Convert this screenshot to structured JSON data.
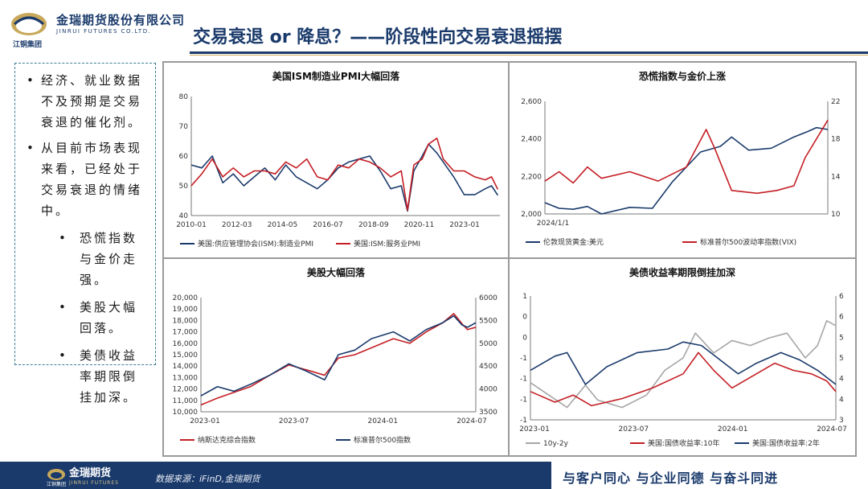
{
  "logo": {
    "name_cn": "金瑞期货股份有限公司",
    "name_en": "JINRUI FUTURES CO.LTD.",
    "group": "江铜集团"
  },
  "title": "交易衰退 or 降息？——阶段性向交易衰退摇摆",
  "bullets": [
    {
      "level": 1,
      "text": "经济、就业数据不及预期是交易衰退的催化剂。"
    },
    {
      "level": 1,
      "text": "从目前市场表现来看，已经处于交易衰退的情绪中。"
    },
    {
      "level": 2,
      "text": "恐慌指数与金价走强。"
    },
    {
      "level": 2,
      "text": "美股大幅回落。"
    },
    {
      "level": 2,
      "text": "美债收益率期限倒挂加深。"
    }
  ],
  "colors": {
    "navy": "#1a3a6b",
    "red": "#c41e24",
    "gray": "#a6a6a6"
  },
  "chart_data": [
    {
      "id": "pmi",
      "type": "line",
      "title": "美国ISM制造业PMI大幅回落",
      "x_ticks": [
        "2010-01",
        "2012-03",
        "2014-05",
        "2016-07",
        "2018-09",
        "2020-11",
        "2023-01"
      ],
      "ylim": [
        40,
        80
      ],
      "y_ticks": [
        "40",
        "50",
        "60",
        "70",
        "80"
      ],
      "series": [
        {
          "name": "美国:供应管理协会(ISM):制造业PMI",
          "color": "#1a3a6b",
          "values": [
            [
              2010.0,
              57
            ],
            [
              2010.5,
              56
            ],
            [
              2011.0,
              60
            ],
            [
              2011.5,
              51
            ],
            [
              2012.0,
              54
            ],
            [
              2012.5,
              50
            ],
            [
              2013.0,
              53
            ],
            [
              2013.5,
              56
            ],
            [
              2014.0,
              52
            ],
            [
              2014.5,
              57
            ],
            [
              2015.0,
              53
            ],
            [
              2015.5,
              51
            ],
            [
              2016.0,
              49
            ],
            [
              2016.5,
              52
            ],
            [
              2017.0,
              56
            ],
            [
              2017.5,
              58
            ],
            [
              2018.0,
              59
            ],
            [
              2018.5,
              60
            ],
            [
              2019.0,
              55
            ],
            [
              2019.5,
              49
            ],
            [
              2020.0,
              50
            ],
            [
              2020.3,
              41.5
            ],
            [
              2020.6,
              55
            ],
            [
              2021.0,
              60
            ],
            [
              2021.3,
              64
            ],
            [
              2021.7,
              61
            ],
            [
              2022.0,
              58
            ],
            [
              2022.5,
              53
            ],
            [
              2023.0,
              47
            ],
            [
              2023.5,
              47
            ],
            [
              2024.0,
              49
            ],
            [
              2024.3,
              50
            ],
            [
              2024.6,
              46.8
            ]
          ]
        },
        {
          "name": "美国:ISM:服务业PMI",
          "color": "#c41e24",
          "values": [
            [
              2010.0,
              50
            ],
            [
              2010.5,
              54
            ],
            [
              2011.0,
              59
            ],
            [
              2011.5,
              53
            ],
            [
              2012.0,
              56
            ],
            [
              2012.5,
              53
            ],
            [
              2013.0,
              55
            ],
            [
              2013.5,
              55
            ],
            [
              2014.0,
              54
            ],
            [
              2014.5,
              58
            ],
            [
              2015.0,
              56
            ],
            [
              2015.5,
              59
            ],
            [
              2016.0,
              53
            ],
            [
              2016.5,
              52
            ],
            [
              2017.0,
              57
            ],
            [
              2017.5,
              56
            ],
            [
              2018.0,
              59
            ],
            [
              2018.5,
              58
            ],
            [
              2019.0,
              56
            ],
            [
              2019.5,
              53
            ],
            [
              2020.0,
              55
            ],
            [
              2020.3,
              41.8
            ],
            [
              2020.6,
              57
            ],
            [
              2021.0,
              59
            ],
            [
              2021.3,
              64
            ],
            [
              2021.7,
              66
            ],
            [
              2022.0,
              59
            ],
            [
              2022.5,
              55
            ],
            [
              2023.0,
              55
            ],
            [
              2023.5,
              53
            ],
            [
              2024.0,
              52
            ],
            [
              2024.3,
              53
            ],
            [
              2024.6,
              48.8
            ]
          ]
        }
      ]
    },
    {
      "id": "vix",
      "type": "line",
      "title": "恐慌指数与金价上涨",
      "x_ticks": [
        "2024/1/1"
      ],
      "ylim_left": [
        2000,
        2600
      ],
      "y_ticks_left": [
        "2,000",
        "2,200",
        "2,400",
        "2,600"
      ],
      "ylim_right": [
        10,
        22
      ],
      "y_ticks_right": [
        "10",
        "14",
        "18",
        "22"
      ],
      "series": [
        {
          "name": "伦敦现货黄金:美元",
          "axis": "left",
          "color": "#1a3a6b",
          "values": [
            [
              0,
              2060
            ],
            [
              0.05,
              2030
            ],
            [
              0.1,
              2025
            ],
            [
              0.15,
              2040
            ],
            [
              0.2,
              2000
            ],
            [
              0.3,
              2035
            ],
            [
              0.38,
              2030
            ],
            [
              0.45,
              2170
            ],
            [
              0.55,
              2330
            ],
            [
              0.62,
              2360
            ],
            [
              0.66,
              2410
            ],
            [
              0.72,
              2340
            ],
            [
              0.8,
              2350
            ],
            [
              0.88,
              2410
            ],
            [
              0.93,
              2440
            ],
            [
              0.96,
              2460
            ],
            [
              1.0,
              2450
            ]
          ]
        },
        {
          "name": "标准普尔500波动率指数(VIX)",
          "axis": "right",
          "color": "#c41e24",
          "values": [
            [
              0,
              13.5
            ],
            [
              0.05,
              14.5
            ],
            [
              0.1,
              13.3
            ],
            [
              0.15,
              15
            ],
            [
              0.2,
              13.8
            ],
            [
              0.3,
              14.5
            ],
            [
              0.4,
              13.5
            ],
            [
              0.5,
              15
            ],
            [
              0.57,
              19
            ],
            [
              0.6,
              17
            ],
            [
              0.66,
              12.5
            ],
            [
              0.75,
              12.2
            ],
            [
              0.82,
              12.5
            ],
            [
              0.88,
              13.0
            ],
            [
              0.92,
              16
            ],
            [
              0.96,
              18
            ],
            [
              1.0,
              20
            ]
          ]
        }
      ]
    },
    {
      "id": "equity",
      "type": "line",
      "title": "美股大幅回落",
      "x_ticks": [
        "2023-01",
        "2023-07",
        "2024-01",
        "2024-07"
      ],
      "ylim_left": [
        10000,
        20000
      ],
      "y_ticks_left": [
        "10,000",
        "11,000",
        "12,000",
        "13,000",
        "14,000",
        "15,000",
        "16,000",
        "17,000",
        "18,000",
        "19,000",
        "20,000"
      ],
      "ylim_right": [
        3500,
        6000
      ],
      "y_ticks_right": [
        "3500",
        "4000",
        "4500",
        "5000",
        "5500",
        "6000"
      ],
      "series": [
        {
          "name": "纳斯达克综合指数",
          "axis": "left",
          "color": "#c41e24",
          "values": [
            [
              0,
              10600
            ],
            [
              0.06,
              11200
            ],
            [
              0.12,
              11700
            ],
            [
              0.18,
              12200
            ],
            [
              0.25,
              13200
            ],
            [
              0.32,
              14100
            ],
            [
              0.38,
              13700
            ],
            [
              0.45,
              13200
            ],
            [
              0.5,
              14700
            ],
            [
              0.56,
              15000
            ],
            [
              0.62,
              15600
            ],
            [
              0.7,
              16400
            ],
            [
              0.76,
              16000
            ],
            [
              0.82,
              17000
            ],
            [
              0.88,
              17800
            ],
            [
              0.92,
              18600
            ],
            [
              0.95,
              17700
            ],
            [
              0.97,
              17200
            ],
            [
              1.0,
              17400
            ]
          ]
        },
        {
          "name": "标准普尔500指数",
          "axis": "right",
          "color": "#1a3a6b",
          "values": [
            [
              0,
              3850
            ],
            [
              0.06,
              4050
            ],
            [
              0.12,
              3950
            ],
            [
              0.18,
              4100
            ],
            [
              0.25,
              4300
            ],
            [
              0.32,
              4550
            ],
            [
              0.38,
              4400
            ],
            [
              0.45,
              4200
            ],
            [
              0.5,
              4750
            ],
            [
              0.56,
              4850
            ],
            [
              0.62,
              5100
            ],
            [
              0.7,
              5250
            ],
            [
              0.76,
              5050
            ],
            [
              0.82,
              5300
            ],
            [
              0.88,
              5450
            ],
            [
              0.92,
              5600
            ],
            [
              0.95,
              5400
            ],
            [
              0.97,
              5350
            ],
            [
              1.0,
              5450
            ]
          ]
        }
      ]
    },
    {
      "id": "treasury",
      "type": "line",
      "title": "美债收益率期限倒挂加深",
      "x_ticks": [
        "2023-01",
        "2023-07",
        "2024-01",
        "2024-07"
      ],
      "ylim_left": [
        -1.25,
        1.25
      ],
      "y_ticks_left": [
        "-1",
        "-1",
        "-1",
        "-1",
        "0",
        "0",
        "1"
      ],
      "ylim_right": [
        3,
        6.5
      ],
      "y_ticks_right": [
        "3",
        "4",
        "4",
        "5",
        "5",
        "6",
        "6"
      ],
      "series": [
        {
          "name": "10y-2y",
          "axis": "left",
          "color": "#a6a6a6",
          "values": [
            [
              0,
              -0.5
            ],
            [
              0.06,
              -0.75
            ],
            [
              0.12,
              -1.0
            ],
            [
              0.18,
              -0.55
            ],
            [
              0.22,
              -0.85
            ],
            [
              0.3,
              -1.0
            ],
            [
              0.38,
              -0.75
            ],
            [
              0.44,
              -0.25
            ],
            [
              0.5,
              0.0
            ],
            [
              0.54,
              0.5
            ],
            [
              0.6,
              0.1
            ],
            [
              0.66,
              0.35
            ],
            [
              0.72,
              0.25
            ],
            [
              0.78,
              0.4
            ],
            [
              0.84,
              0.5
            ],
            [
              0.9,
              0.0
            ],
            [
              0.94,
              0.25
            ],
            [
              0.97,
              0.75
            ],
            [
              1.0,
              0.65
            ]
          ]
        },
        {
          "name": "美国:国债收益率:10年",
          "axis": "right",
          "color": "#c41e24",
          "values": [
            [
              0,
              3.8
            ],
            [
              0.08,
              3.5
            ],
            [
              0.14,
              3.7
            ],
            [
              0.2,
              3.4
            ],
            [
              0.3,
              3.6
            ],
            [
              0.4,
              3.9
            ],
            [
              0.5,
              4.3
            ],
            [
              0.55,
              4.9
            ],
            [
              0.6,
              4.4
            ],
            [
              0.66,
              3.9
            ],
            [
              0.72,
              4.2
            ],
            [
              0.8,
              4.6
            ],
            [
              0.86,
              4.4
            ],
            [
              0.92,
              4.3
            ],
            [
              0.97,
              4.1
            ],
            [
              1.0,
              3.8
            ]
          ]
        },
        {
          "name": "美国:国债收益率:2年",
          "axis": "right",
          "color": "#1a3a6b",
          "values": [
            [
              0,
              4.4
            ],
            [
              0.08,
              4.8
            ],
            [
              0.12,
              4.9
            ],
            [
              0.18,
              4.0
            ],
            [
              0.25,
              4.5
            ],
            [
              0.35,
              4.9
            ],
            [
              0.45,
              5.0
            ],
            [
              0.5,
              5.2
            ],
            [
              0.56,
              5.1
            ],
            [
              0.62,
              4.7
            ],
            [
              0.68,
              4.3
            ],
            [
              0.74,
              4.6
            ],
            [
              0.82,
              4.9
            ],
            [
              0.88,
              4.7
            ],
            [
              0.94,
              4.4
            ],
            [
              1.0,
              4.0
            ]
          ]
        }
      ]
    }
  ],
  "footer": {
    "logo_cn": "金瑞期货",
    "logo_en": "JINRUI FUTURES",
    "group": "江铜集团",
    "source": "数据来源：iFinD,金瑞期货",
    "slogan": "与客户同心  与企业同德  与奋斗同进"
  }
}
